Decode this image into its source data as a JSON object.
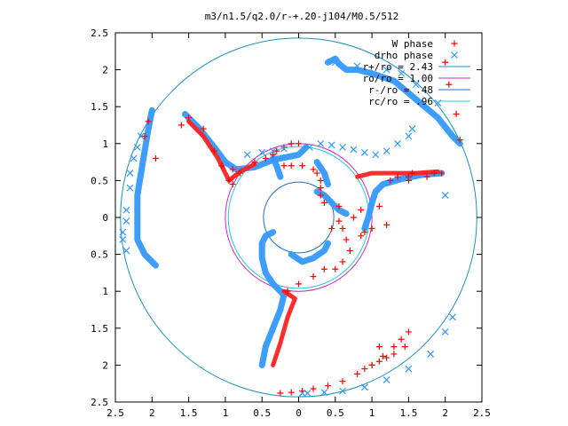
{
  "chart_data": {
    "type": "scatter",
    "title": "m3/n1.5/q2.0/r-+.20-j104/M0.5/512",
    "xlim": [
      -2.5,
      2.5
    ],
    "ylim": [
      -2.5,
      2.5
    ],
    "xticks": [
      -2.5,
      -2,
      -1.5,
      -1,
      -0.5,
      0,
      0.5,
      1,
      1.5,
      2,
      2.5
    ],
    "xtick_labels": [
      "2.5",
      "2",
      "1.5",
      "1",
      "0.5",
      "0",
      "0.5",
      "1",
      "1.5",
      "2",
      "2.5"
    ],
    "yticks": [
      2.5,
      2,
      1.5,
      1,
      0.5,
      0,
      -0.5,
      -1,
      -1.5,
      -2,
      -2.5
    ],
    "ytick_labels": [
      "2.5",
      "2",
      "1.5",
      "1",
      "0.5",
      "0",
      "0.5",
      "1",
      "1.5",
      "2",
      "2.5"
    ],
    "grid": false,
    "legend_position": "top-right",
    "series": [
      {
        "name": "W phase",
        "marker": "plus",
        "color": "#ff0000",
        "x": [
          -1.6,
          -1.5,
          -1.3,
          -1.15,
          -1.05,
          -0.95,
          -0.9,
          -0.8,
          -0.2,
          -0.1,
          0.05,
          0.2,
          0.25,
          0.3,
          0.3,
          0.3,
          0.35,
          0.55,
          0.85,
          1.1,
          1.25,
          1.35,
          1.5,
          1.55,
          -0.9,
          -0.6,
          -0.45,
          -0.35,
          -0.3,
          -0.2,
          -0.1,
          0.0,
          0.45,
          0.75,
          0.85,
          0.9,
          1.0,
          1.2,
          1.5,
          1.75,
          1.85,
          1.95,
          0.55,
          0.6,
          0.65,
          0.7,
          0.6,
          0.5,
          0.35,
          0.2,
          0.0,
          -0.15,
          0.9,
          1.0,
          1.1,
          1.2,
          1.3,
          1.45,
          -0.25,
          -0.1,
          0.05,
          0.2,
          0.4,
          0.6,
          0.8,
          1.0,
          1.15,
          1.3,
          1.4,
          1.5,
          -2.05,
          -2.1,
          -1.95,
          2.0,
          2.05,
          2.15,
          2.2,
          1.1
        ],
        "y": [
          1.25,
          1.35,
          1.2,
          0.9,
          0.7,
          0.5,
          0.45,
          0.6,
          0.7,
          0.7,
          0.7,
          0.65,
          0.6,
          0.5,
          0.4,
          0.3,
          0.2,
          0.15,
          0.1,
          0.15,
          0.5,
          0.55,
          0.55,
          0.6,
          0.65,
          0.75,
          0.8,
          0.85,
          0.9,
          0.95,
          1.0,
          1.0,
          -0.15,
          0.0,
          -0.25,
          -0.2,
          -0.15,
          -0.1,
          0.5,
          0.55,
          0.6,
          0.6,
          -0.05,
          -0.15,
          -0.3,
          -0.45,
          -0.6,
          -0.7,
          -0.7,
          -0.8,
          -0.9,
          -1.0,
          -2.05,
          -2.0,
          -1.95,
          -1.9,
          -1.85,
          -1.75,
          -2.38,
          -2.37,
          -2.35,
          -2.32,
          -2.28,
          -2.22,
          -2.12,
          -2.0,
          -1.88,
          -1.75,
          -1.65,
          -1.55,
          1.3,
          1.1,
          0.8,
          2.1,
          1.8,
          1.4,
          1.05,
          -1.75
        ]
      },
      {
        "name": "drho phase",
        "marker": "cross",
        "color": "#3399ff",
        "x": [
          0.05,
          0.12,
          0.35,
          0.6,
          0.9,
          1.2,
          1.5,
          1.8,
          2.0,
          2.1,
          -0.7,
          -0.5,
          -0.35,
          -0.2,
          0.15,
          0.3,
          0.45,
          0.6,
          0.75,
          0.9,
          1.05,
          1.2,
          1.35,
          1.5,
          1.55,
          -2.15,
          -2.2,
          -2.25,
          -2.3,
          -2.3,
          -2.35,
          -2.35,
          -2.4,
          -2.4,
          -2.35,
          2.0,
          1.9,
          1.6,
          1.4,
          1.2,
          0.8,
          0.5
        ],
        "y": [
          -2.38,
          -2.38,
          -2.37,
          -2.35,
          -2.3,
          -2.2,
          -2.05,
          -1.85,
          -1.55,
          -1.35,
          0.85,
          0.88,
          0.9,
          0.93,
          0.95,
          1.0,
          0.98,
          0.95,
          0.92,
          0.88,
          0.85,
          0.9,
          1.0,
          1.1,
          1.2,
          1.1,
          0.95,
          0.8,
          0.6,
          0.4,
          0.1,
          -0.05,
          -0.2,
          -0.3,
          -0.45,
          0.3,
          1.55,
          1.8,
          1.95,
          2.0,
          2.05,
          2.1
        ]
      }
    ],
    "circles": [
      {
        "name": "r+/ro = 2.43",
        "r": 2.43,
        "color": "#1f8fbf"
      },
      {
        "name": "ro/ro = 1.00",
        "r": 1.0,
        "color": "#cc22cc"
      },
      {
        "name": "r-/ro = .48",
        "r": 0.48,
        "color": "#1f6fd0"
      },
      {
        "name": "rc/ro = .96",
        "r": 0.96,
        "color": "#22cccc"
      }
    ],
    "arms": [
      {
        "color": "#3399ff",
        "points": [
          [
            -1.55,
            1.4
          ],
          [
            -1.35,
            1.2
          ],
          [
            -1.15,
            0.95
          ],
          [
            -1.0,
            0.75
          ],
          [
            -0.85,
            0.65
          ],
          [
            -0.6,
            0.68
          ],
          [
            -0.35,
            0.78
          ],
          [
            -0.15,
            0.82
          ],
          [
            0.0,
            0.85
          ],
          [
            0.1,
            0.95
          ]
        ]
      },
      {
        "color": "#ff2222",
        "points": [
          [
            -1.5,
            1.3
          ],
          [
            -1.3,
            1.1
          ],
          [
            -1.1,
            0.8
          ],
          [
            -0.95,
            0.5
          ],
          [
            -0.8,
            0.62
          ],
          [
            -0.6,
            0.72
          ]
        ]
      },
      {
        "color": "#3399ff",
        "points": [
          [
            -0.5,
            -2.0
          ],
          [
            -0.45,
            -1.75
          ],
          [
            -0.35,
            -1.5
          ],
          [
            -0.25,
            -1.25
          ],
          [
            -0.2,
            -1.05
          ],
          [
            -0.35,
            -0.9
          ],
          [
            -0.45,
            -0.75
          ],
          [
            -0.5,
            -0.55
          ],
          [
            -0.5,
            -0.35
          ],
          [
            -0.45,
            -0.25
          ],
          [
            -0.35,
            -0.2
          ]
        ]
      },
      {
        "color": "#ff2222",
        "points": [
          [
            -0.35,
            -2.0
          ],
          [
            -0.25,
            -1.7
          ],
          [
            -0.15,
            -1.35
          ],
          [
            -0.05,
            -1.1
          ],
          [
            -0.2,
            -1.0
          ]
        ]
      },
      {
        "color": "#3399ff",
        "points": [
          [
            0.25,
            0.35
          ],
          [
            0.35,
            0.3
          ],
          [
            0.45,
            0.2
          ],
          [
            0.55,
            0.1
          ],
          [
            0.65,
            0.05
          ]
        ]
      },
      {
        "color": "#3399ff",
        "points": [
          [
            0.9,
            -0.15
          ],
          [
            0.95,
            0.0
          ],
          [
            1.0,
            0.2
          ],
          [
            1.05,
            0.35
          ],
          [
            1.15,
            0.45
          ],
          [
            1.4,
            0.52
          ],
          [
            1.7,
            0.58
          ],
          [
            1.95,
            0.6
          ]
        ]
      },
      {
        "color": "#ff2222",
        "points": [
          [
            0.8,
            0.55
          ],
          [
            1.0,
            0.6
          ],
          [
            1.3,
            0.6
          ],
          [
            1.6,
            0.6
          ],
          [
            1.9,
            0.62
          ]
        ]
      },
      {
        "color": "#3399ff",
        "points": [
          [
            -2.0,
            1.45
          ],
          [
            -2.05,
            1.2
          ],
          [
            -2.1,
            0.9
          ],
          [
            -2.15,
            0.6
          ],
          [
            -2.2,
            0.3
          ],
          [
            -2.2,
            0.0
          ],
          [
            -2.2,
            -0.3
          ],
          [
            -2.1,
            -0.5
          ],
          [
            -2.0,
            -0.6
          ],
          [
            -1.95,
            -0.65
          ]
        ]
      },
      {
        "color": "#3399ff",
        "points": [
          [
            0.4,
            2.1
          ],
          [
            0.5,
            2.15
          ],
          [
            0.55,
            2.08
          ],
          [
            0.65,
            2.0
          ],
          [
            0.8,
            2.0
          ],
          [
            1.0,
            1.95
          ],
          [
            1.3,
            1.85
          ],
          [
            1.6,
            1.6
          ],
          [
            1.9,
            1.35
          ],
          [
            2.1,
            1.1
          ],
          [
            2.2,
            1.0
          ]
        ]
      },
      {
        "color": "#3399ff",
        "points": [
          [
            -0.1,
            -0.5
          ],
          [
            0.05,
            -0.6
          ],
          [
            0.2,
            -0.55
          ],
          [
            0.35,
            -0.45
          ],
          [
            0.4,
            -0.35
          ]
        ]
      },
      {
        "color": "#3399ff",
        "points": [
          [
            0.25,
            0.75
          ],
          [
            0.35,
            0.6
          ],
          [
            0.4,
            0.45
          ]
        ]
      },
      {
        "color": "#3399ff",
        "points": [
          [
            -0.35,
            0.8
          ],
          [
            -0.3,
            0.7
          ],
          [
            -0.25,
            0.55
          ]
        ]
      }
    ],
    "legend": [
      {
        "label": "W phase",
        "marker": "plus",
        "color": "#ff0000"
      },
      {
        "label": "drho phase",
        "marker": "cross",
        "color": "#3399ff"
      },
      {
        "label": "r+/ro = 2.43",
        "marker": "line",
        "color": "#1f8fbf"
      },
      {
        "label": "ro/ro = 1.00",
        "marker": "line",
        "color": "#cc22cc"
      },
      {
        "label": "r-/ro = .48",
        "marker": "line",
        "color": "#1f6fd0"
      },
      {
        "label": "rc/ro = .96",
        "marker": "line",
        "color": "#22cccc"
      }
    ]
  }
}
